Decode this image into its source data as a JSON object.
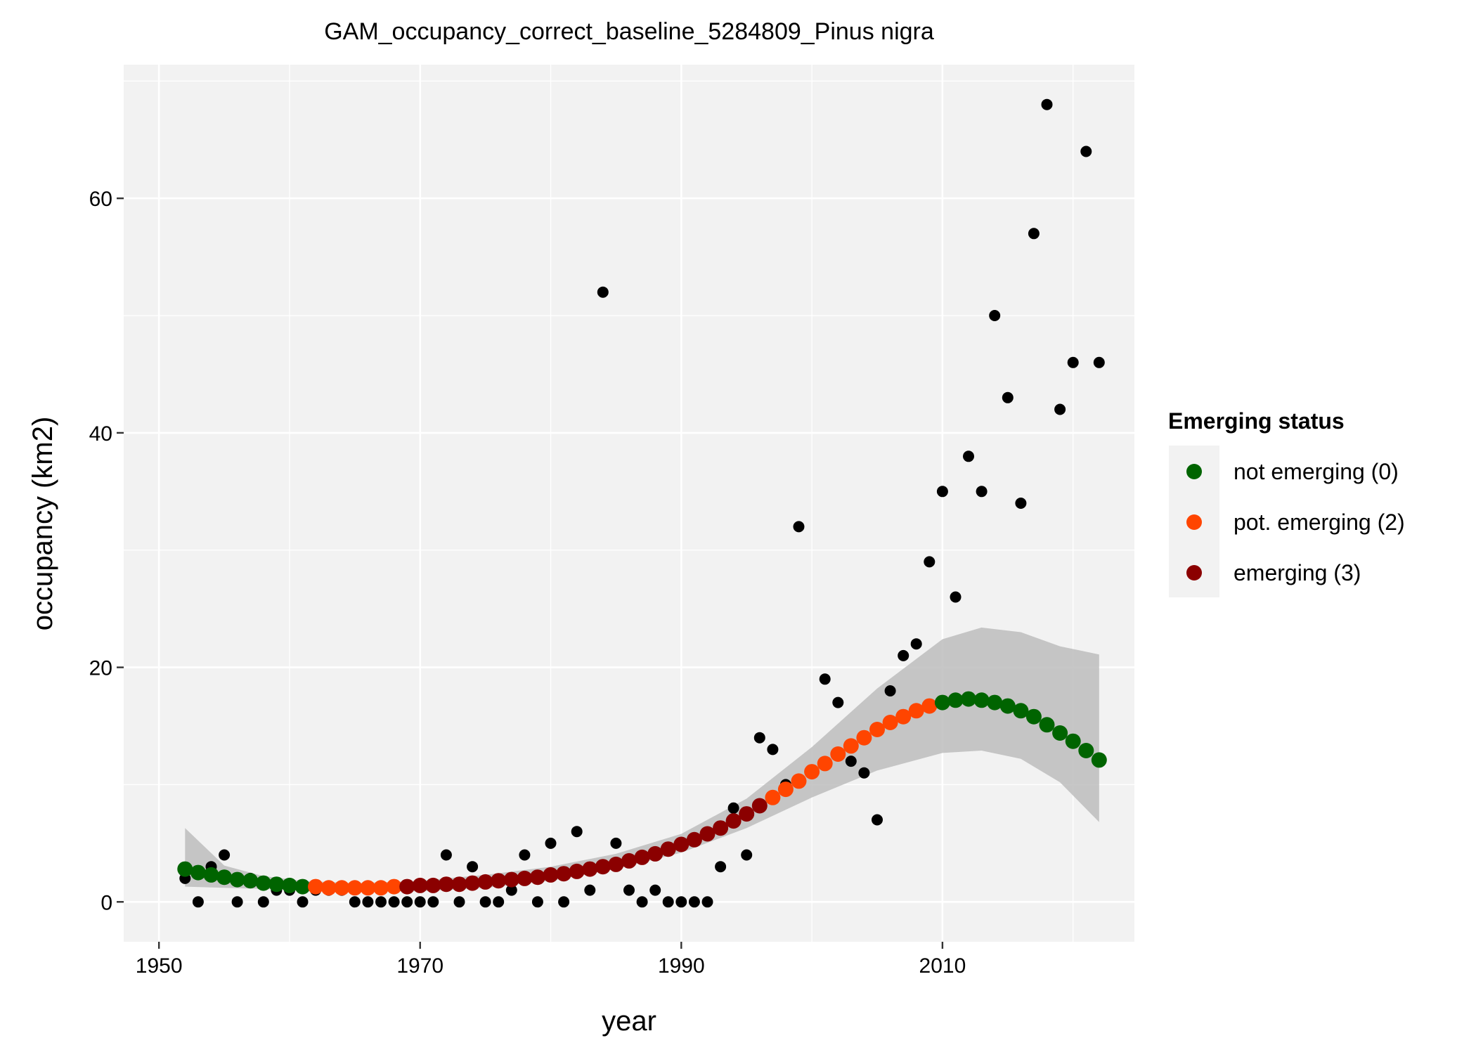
{
  "chart_data": {
    "type": "scatter",
    "title": "GAM_occupancy_correct_baseline_5284809_Pinus nigra",
    "xlabel": "year",
    "ylabel": "occupancy (km2)",
    "xlim": [
      1947.3,
      2024.7
    ],
    "ylim": [
      -3.4,
      71.4
    ],
    "x_ticks": [
      1950,
      1970,
      1990,
      2010
    ],
    "y_ticks": [
      0,
      20,
      40,
      60
    ],
    "grid": true,
    "background": "#f2f2f2",
    "legend": {
      "title": "Emerging status",
      "position": "right",
      "entries": [
        {
          "label": "not emerging (0)",
          "color": "#006400"
        },
        {
          "label": "pot. emerging (2)",
          "color": "#ff4500"
        },
        {
          "label": "emerging (3)",
          "color": "#8b0000"
        }
      ]
    },
    "observed": {
      "color": "#000000",
      "points": [
        [
          1952,
          2
        ],
        [
          1953,
          0
        ],
        [
          1954,
          3
        ],
        [
          1955,
          4
        ],
        [
          1956,
          0
        ],
        [
          1957,
          2
        ],
        [
          1958,
          0
        ],
        [
          1959,
          1
        ],
        [
          1960,
          1
        ],
        [
          1961,
          0
        ],
        [
          1962,
          1
        ],
        [
          1963,
          1
        ],
        [
          1964,
          1
        ],
        [
          1965,
          0
        ],
        [
          1966,
          0
        ],
        [
          1967,
          0
        ],
        [
          1968,
          0
        ],
        [
          1969,
          0
        ],
        [
          1970,
          0
        ],
        [
          1971,
          0
        ],
        [
          1972,
          4
        ],
        [
          1973,
          0
        ],
        [
          1974,
          3
        ],
        [
          1975,
          0
        ],
        [
          1976,
          0
        ],
        [
          1977,
          1
        ],
        [
          1978,
          4
        ],
        [
          1979,
          0
        ],
        [
          1980,
          5
        ],
        [
          1981,
          0
        ],
        [
          1982,
          6
        ],
        [
          1983,
          1
        ],
        [
          1984,
          52
        ],
        [
          1985,
          5
        ],
        [
          1986,
          1
        ],
        [
          1987,
          0
        ],
        [
          1988,
          1
        ],
        [
          1989,
          0
        ],
        [
          1990,
          0
        ],
        [
          1991,
          0
        ],
        [
          1992,
          0
        ],
        [
          1993,
          3
        ],
        [
          1994,
          8
        ],
        [
          1995,
          4
        ],
        [
          1996,
          14
        ],
        [
          1997,
          13
        ],
        [
          1998,
          10
        ],
        [
          1999,
          32
        ],
        [
          2001,
          19
        ],
        [
          2002,
          17
        ],
        [
          2003,
          12
        ],
        [
          2004,
          11
        ],
        [
          2005,
          7
        ],
        [
          2006,
          18
        ],
        [
          2007,
          21
        ],
        [
          2008,
          22
        ],
        [
          2009,
          29
        ],
        [
          2010,
          35
        ],
        [
          2011,
          26
        ],
        [
          2012,
          38
        ],
        [
          2013,
          35
        ],
        [
          2014,
          50
        ],
        [
          2015,
          43
        ],
        [
          2016,
          34
        ],
        [
          2017,
          57
        ],
        [
          2018,
          68
        ],
        [
          2019,
          42
        ],
        [
          2020,
          46
        ],
        [
          2021,
          64
        ],
        [
          2022,
          46
        ]
      ]
    },
    "fit": {
      "years": [
        1952,
        1953,
        1954,
        1955,
        1956,
        1957,
        1958,
        1959,
        1960,
        1961,
        1962,
        1963,
        1964,
        1965,
        1966,
        1967,
        1968,
        1969,
        1970,
        1971,
        1972,
        1973,
        1974,
        1975,
        1976,
        1977,
        1978,
        1979,
        1980,
        1981,
        1982,
        1983,
        1984,
        1985,
        1986,
        1987,
        1988,
        1989,
        1990,
        1991,
        1992,
        1993,
        1994,
        1995,
        1996,
        1997,
        1998,
        1999,
        2000,
        2001,
        2002,
        2003,
        2004,
        2005,
        2006,
        2007,
        2008,
        2009,
        2010,
        2011,
        2012,
        2013,
        2014,
        2015,
        2016,
        2017,
        2018,
        2019,
        2020,
        2021,
        2022
      ],
      "values": [
        2.8,
        2.5,
        2.3,
        2.1,
        1.9,
        1.8,
        1.6,
        1.5,
        1.4,
        1.3,
        1.3,
        1.2,
        1.2,
        1.2,
        1.2,
        1.2,
        1.3,
        1.3,
        1.4,
        1.4,
        1.5,
        1.5,
        1.6,
        1.7,
        1.8,
        1.9,
        2.0,
        2.1,
        2.3,
        2.4,
        2.6,
        2.8,
        3.0,
        3.2,
        3.5,
        3.8,
        4.1,
        4.5,
        4.9,
        5.3,
        5.8,
        6.3,
        6.9,
        7.5,
        8.2,
        8.9,
        9.6,
        10.3,
        11.1,
        11.8,
        12.6,
        13.3,
        14.0,
        14.7,
        15.3,
        15.8,
        16.3,
        16.7,
        17.0,
        17.2,
        17.3,
        17.2,
        17.0,
        16.7,
        16.3,
        15.8,
        15.1,
        14.4,
        13.7,
        12.9,
        12.1
      ],
      "status": [
        0,
        0,
        0,
        0,
        0,
        0,
        0,
        0,
        0,
        0,
        2,
        2,
        2,
        2,
        2,
        2,
        2,
        3,
        3,
        3,
        3,
        3,
        3,
        3,
        3,
        3,
        3,
        3,
        3,
        3,
        3,
        3,
        3,
        3,
        3,
        3,
        3,
        3,
        3,
        3,
        3,
        3,
        3,
        3,
        3,
        2,
        2,
        2,
        2,
        2,
        2,
        2,
        2,
        2,
        2,
        2,
        2,
        2,
        0,
        0,
        0,
        0,
        0,
        0,
        0,
        0,
        0,
        0,
        0,
        0,
        0
      ]
    },
    "ribbon": {
      "fill": "#bdbdbd",
      "years": [
        1952,
        1955,
        1958,
        1961,
        1965,
        1970,
        1975,
        1980,
        1985,
        1990,
        1995,
        2000,
        2005,
        2010,
        2013,
        2016,
        2019,
        2022
      ],
      "lower": [
        1.3,
        1.2,
        1.1,
        1.0,
        0.9,
        0.9,
        1.2,
        1.8,
        2.8,
        4.2,
        6.3,
        8.9,
        11.2,
        12.7,
        12.9,
        12.2,
        10.2,
        6.8
      ],
      "upper": [
        6.3,
        3.1,
        2.2,
        1.8,
        1.6,
        1.8,
        2.3,
        3.0,
        4.1,
        5.8,
        8.8,
        13.2,
        18.2,
        22.4,
        23.4,
        23.0,
        21.8,
        21.1
      ]
    }
  }
}
